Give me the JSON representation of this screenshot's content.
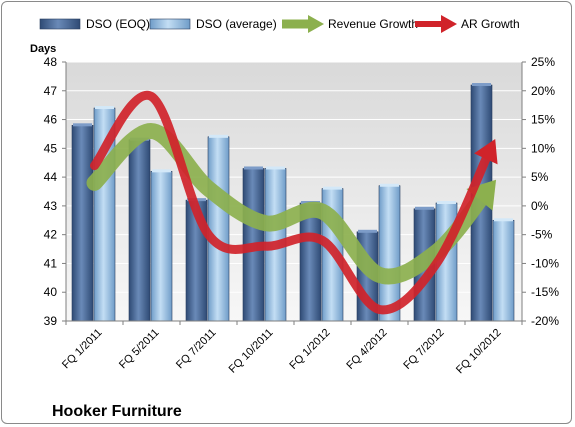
{
  "chart_data": {
    "type": "bar",
    "company": "Hooker Furniture",
    "y_left_label": "Days",
    "y_left_range": [
      39,
      48
    ],
    "y_left_ticks": [
      39,
      40,
      41,
      42,
      43,
      44,
      45,
      46,
      47,
      48
    ],
    "y_right_range": [
      -20,
      25
    ],
    "y_right_ticks": [
      "-20%",
      "-15%",
      "-10%",
      "-5%",
      "0%",
      "5%",
      "10%",
      "15%",
      "20%",
      "25%"
    ],
    "y_right_values": [
      -20,
      -15,
      -10,
      -5,
      0,
      5,
      10,
      15,
      20,
      25
    ],
    "categories": [
      "FQ 1/2011",
      "FQ 5/2011",
      "FQ 7/2011",
      "FQ 10/2011",
      "FQ 1/2012",
      "FQ 4/2012",
      "FQ 7/2012",
      "FQ 10/2012"
    ],
    "series": [
      {
        "name": "DSO (EOQ)",
        "kind": "bar",
        "axis": "left",
        "color": "#4f6f9c",
        "values": [
          45.8,
          45.3,
          43.2,
          44.3,
          43.1,
          42.1,
          42.9,
          47.2
        ]
      },
      {
        "name": "DSO (average)",
        "kind": "bar",
        "axis": "left",
        "color": "#9ec5e8",
        "values": [
          46.4,
          44.2,
          45.4,
          44.3,
          43.6,
          43.7,
          43.1,
          42.5
        ]
      },
      {
        "name": "Revenue Growth",
        "kind": "arrow",
        "axis": "right",
        "color": "#8cb04e",
        "values": [
          4,
          13,
          3,
          -3,
          -1,
          -12,
          -8,
          4
        ]
      },
      {
        "name": "AR Growth",
        "kind": "arrow",
        "axis": "right",
        "color": "#d0232a",
        "values": [
          7,
          19,
          -5,
          -7,
          -6,
          -18,
          -10,
          11
        ]
      }
    ]
  }
}
